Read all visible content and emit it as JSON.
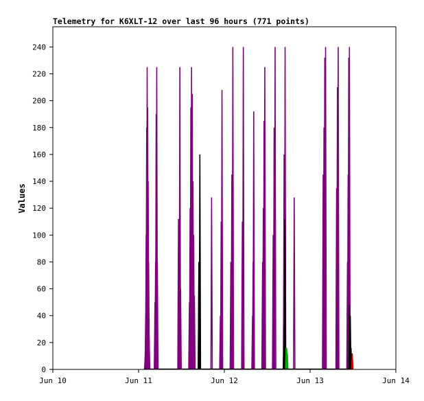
{
  "chart_data": {
    "type": "line",
    "title": "Telemetry for K6XLT-12 over last 96 hours (771 points)",
    "xlabel": "",
    "ylabel": "Values",
    "x_ticks": [
      "Jun 10",
      "Jun 11",
      "Jun 12",
      "Jun 13",
      "Jun 14"
    ],
    "x_unit": "hours since Jun 10 00:00",
    "xlim": [
      0,
      96
    ],
    "ylim": [
      0,
      255
    ],
    "y_ticks": [
      0,
      20,
      40,
      60,
      80,
      100,
      120,
      140,
      160,
      180,
      200,
      220,
      240
    ],
    "grid": false,
    "legend": "none",
    "series": [
      {
        "color": "#800080",
        "spikes": [
          [
            25.85,
            10
          ],
          [
            25.99,
            40
          ],
          [
            26.12,
            100
          ],
          [
            26.26,
            180
          ],
          [
            26.4,
            225
          ],
          [
            26.54,
            195
          ],
          [
            26.68,
            140
          ],
          [
            26.82,
            80
          ],
          [
            26.95,
            25
          ],
          [
            28.58,
            50
          ],
          [
            28.75,
            80
          ],
          [
            28.92,
            190
          ],
          [
            29.08,
            225
          ],
          [
            29.25,
            80
          ],
          [
            35.16,
            112
          ],
          [
            35.36,
            80
          ],
          [
            35.55,
            225
          ],
          [
            35.75,
            60
          ],
          [
            38.22,
            50
          ],
          [
            38.42,
            120
          ],
          [
            38.62,
            195
          ],
          [
            38.82,
            225
          ],
          [
            39.02,
            205
          ],
          [
            39.22,
            140
          ],
          [
            39.42,
            100
          ],
          [
            39.62,
            55
          ],
          [
            40.88,
            80
          ],
          [
            44.43,
            128
          ],
          [
            46.88,
            40
          ],
          [
            47.11,
            110
          ],
          [
            47.34,
            208
          ],
          [
            49.81,
            80
          ],
          [
            50.09,
            145
          ],
          [
            50.38,
            240
          ],
          [
            53.03,
            110
          ],
          [
            53.31,
            240
          ],
          [
            55.88,
            40
          ],
          [
            56.05,
            80
          ],
          [
            56.22,
            192
          ],
          [
            58.69,
            80
          ],
          [
            58.9,
            120
          ],
          [
            59.11,
            185
          ],
          [
            59.32,
            225
          ],
          [
            61.66,
            100
          ],
          [
            61.93,
            180
          ],
          [
            62.2,
            240
          ],
          [
            64.72,
            160
          ],
          [
            65.0,
            240
          ],
          [
            67.55,
            128
          ],
          [
            75.65,
            145
          ],
          [
            75.88,
            180
          ],
          [
            76.1,
            232
          ],
          [
            76.33,
            240
          ],
          [
            79.41,
            135
          ],
          [
            79.64,
            210
          ],
          [
            79.86,
            240
          ],
          [
            82.46,
            80
          ],
          [
            82.64,
            145
          ],
          [
            82.81,
            232
          ],
          [
            83.0,
            240
          ]
        ]
      },
      {
        "color": "#000000",
        "spikes": [
          [
            40.88,
            80
          ],
          [
            41.15,
            160
          ],
          [
            64.68,
            32
          ],
          [
            64.95,
            112
          ],
          [
            65.15,
            5
          ],
          [
            83.04,
            48
          ],
          [
            83.25,
            40
          ],
          [
            83.45,
            16
          ]
        ]
      },
      {
        "color": "#00aa00",
        "spikes": [
          [
            65.28,
            16
          ],
          [
            65.45,
            16
          ],
          [
            65.62,
            12
          ]
        ]
      },
      {
        "color": "#cc0000",
        "spikes": [
          [
            83.8,
            12
          ]
        ]
      }
    ]
  }
}
